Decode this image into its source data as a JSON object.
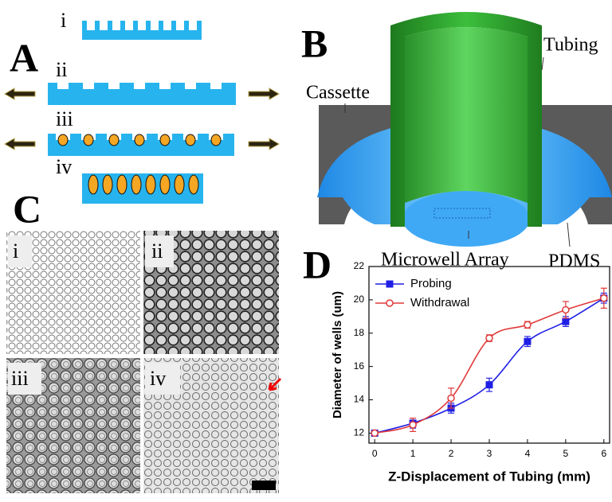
{
  "panels": {
    "a": {
      "label": "A",
      "steps": [
        "i",
        "ii",
        "iii",
        "iv"
      ]
    },
    "b": {
      "label": "B",
      "callouts": [
        "Cassette",
        "Tubing",
        "Microwell Array",
        "PDMS"
      ]
    },
    "c": {
      "label": "C",
      "images": [
        "i",
        "ii",
        "iii",
        "iv"
      ]
    },
    "d": {
      "label": "D"
    }
  },
  "chart_data": {
    "type": "line",
    "xlabel": "Z-Displacement of Tubing (mm)",
    "ylabel": "Diameter of wells (um)",
    "x": [
      0,
      1,
      2,
      3,
      4,
      5,
      6
    ],
    "series": [
      {
        "name": "Probing",
        "color": "#1f1fe6",
        "marker": "square",
        "values": [
          12.0,
          12.6,
          13.5,
          14.9,
          17.5,
          18.7,
          20.1
        ],
        "errors": [
          0.15,
          0.3,
          0.3,
          0.4,
          0.3,
          0.3,
          0.3
        ]
      },
      {
        "name": "Withdrawal",
        "color": "#e03a3a",
        "marker": "open-circle",
        "values": [
          12.0,
          12.5,
          14.1,
          17.7,
          18.5,
          19.4,
          20.1
        ],
        "errors": [
          0.1,
          0.4,
          0.6,
          0.2,
          0.2,
          0.5,
          0.6
        ]
      }
    ],
    "xlim": [
      -0.15,
      6.15
    ],
    "ylim": [
      11.4,
      22
    ],
    "xticks": [
      0,
      1,
      2,
      3,
      4,
      5,
      6
    ],
    "yticks": [
      12,
      14,
      16,
      18,
      20,
      22
    ],
    "legend": "upper left"
  }
}
